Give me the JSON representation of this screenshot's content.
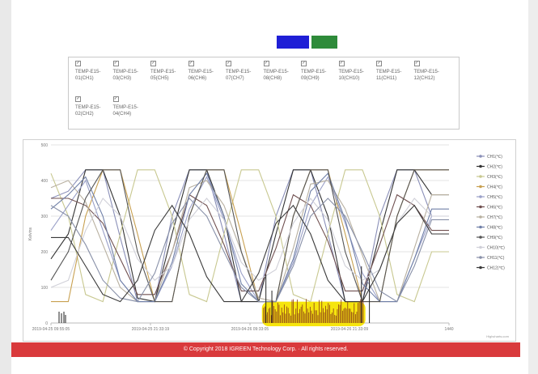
{
  "toolbar": {
    "button1_color": "#1f1fd6",
    "button2_color": "#2e8b3a"
  },
  "channels": [
    {
      "label": "TEMP-E15-01(CH1)",
      "checked": true
    },
    {
      "label": "TEMP-E15-03(CH3)",
      "checked": true
    },
    {
      "label": "TEMP-E15-05(CH5)",
      "checked": true
    },
    {
      "label": "TEMP-E15-06(CH6)",
      "checked": true
    },
    {
      "label": "TEMP-E15-07(CH7)",
      "checked": true
    },
    {
      "label": "TEMP-E15-08(CH8)",
      "checked": true
    },
    {
      "label": "TEMP-E15-09(CH9)",
      "checked": true
    },
    {
      "label": "TEMP-E15-10(CH10)",
      "checked": true
    },
    {
      "label": "TEMP-E15-11(CH11)",
      "checked": true
    },
    {
      "label": "TEMP-E15-12(CH12)",
      "checked": true
    },
    {
      "label": "TEMP-E15-02(CH2)",
      "checked": true
    },
    {
      "label": "TEMP-E15-04(CH4)",
      "checked": true
    }
  ],
  "chart_data": {
    "type": "line",
    "ylabel": "Kelvins",
    "ylim": [
      0,
      500
    ],
    "yticks": [
      "0",
      "100",
      "200",
      "300",
      "400",
      "500"
    ],
    "x_tick_labels": [
      "2019-04-25 09:55:05",
      "2019-04-25 21:33:19",
      "2019-04-26 09:33:05",
      "2019-04-26 21:33:09",
      "1440"
    ],
    "credit": "Highcharts.com",
    "legend_position": "right",
    "series": [
      {
        "name": "CH1(℃)",
        "color": "#8a8fb8",
        "values": [
          350,
          370,
          430,
          430,
          240,
          60,
          60,
          300,
          430,
          430,
          250,
          60,
          60,
          300,
          430,
          430,
          250,
          60,
          60,
          300,
          430,
          430,
          300,
          300
        ]
      },
      {
        "name": "CH2(℃)",
        "color": "#333333",
        "values": [
          180,
          250,
          430,
          430,
          300,
          70,
          60,
          250,
          430,
          430,
          300,
          60,
          60,
          250,
          430,
          430,
          300,
          60,
          60,
          250,
          430,
          430,
          360,
          360
        ]
      },
      {
        "name": "CH3(℃)",
        "color": "#c8c890",
        "values": [
          420,
          300,
          80,
          60,
          250,
          430,
          430,
          300,
          80,
          60,
          250,
          430,
          430,
          300,
          80,
          60,
          250,
          430,
          430,
          300,
          80,
          60,
          200,
          200
        ]
      },
      {
        "name": "CH4(℃)",
        "color": "#c8a050",
        "values": [
          60,
          60,
          300,
          430,
          430,
          250,
          60,
          60,
          300,
          430,
          430,
          250,
          60,
          60,
          300,
          430,
          430,
          250,
          60,
          60,
          300,
          430,
          430,
          430
        ]
      },
      {
        "name": "CH5(℃)",
        "color": "#9aa0c8",
        "values": [
          260,
          330,
          400,
          260,
          120,
          60,
          60,
          160,
          320,
          410,
          290,
          140,
          60,
          60,
          170,
          330,
          410,
          280,
          140,
          60,
          60,
          180,
          300,
          300
        ]
      },
      {
        "name": "CH6(℃)",
        "color": "#705050",
        "values": [
          350,
          350,
          330,
          280,
          180,
          80,
          80,
          200,
          360,
          330,
          220,
          90,
          90,
          210,
          360,
          330,
          230,
          90,
          90,
          220,
          360,
          330,
          260,
          260
        ]
      },
      {
        "name": "CH7(℃)",
        "color": "#b8b0a0",
        "values": [
          380,
          400,
          340,
          220,
          100,
          60,
          60,
          200,
          380,
          400,
          330,
          200,
          70,
          60,
          210,
          390,
          400,
          320,
          190,
          60,
          60,
          210,
          360,
          360
        ]
      },
      {
        "name": "CH8(℃)",
        "color": "#7080a8",
        "values": [
          320,
          360,
          410,
          300,
          120,
          60,
          60,
          170,
          360,
          420,
          300,
          110,
          60,
          60,
          180,
          370,
          420,
          290,
          110,
          60,
          60,
          180,
          320,
          320
        ]
      },
      {
        "name": "CH9(℃)",
        "color": "#555555",
        "values": [
          120,
          200,
          350,
          430,
          430,
          200,
          60,
          60,
          300,
          430,
          430,
          200,
          60,
          60,
          300,
          430,
          430,
          200,
          60,
          60,
          300,
          430,
          430,
          430
        ]
      },
      {
        "name": "CH10(℃)",
        "color": "#d0d0d8",
        "values": [
          100,
          120,
          260,
          350,
          300,
          180,
          120,
          160,
          290,
          350,
          290,
          170,
          120,
          150,
          280,
          350,
          290,
          160,
          120,
          150,
          280,
          350,
          300,
          300
        ]
      },
      {
        "name": "CH11(℃)",
        "color": "#8890a8",
        "values": [
          330,
          300,
          220,
          120,
          70,
          60,
          140,
          280,
          350,
          300,
          200,
          100,
          60,
          60,
          160,
          300,
          350,
          300,
          200,
          90,
          60,
          160,
          290,
          290
        ]
      },
      {
        "name": "CH12(℃)",
        "color": "#3a3a3a",
        "values": [
          240,
          240,
          160,
          80,
          60,
          120,
          260,
          330,
          250,
          130,
          60,
          60,
          140,
          280,
          330,
          250,
          120,
          60,
          60,
          150,
          280,
          330,
          250,
          250
        ]
      }
    ],
    "spikes_label": "noise spikes near baseline (highlighted)",
    "highlight_color": "#f5e400"
  },
  "footer": {
    "text": "© Copyright 2018 IGREEN Technology Corp. · All rights reserved."
  }
}
